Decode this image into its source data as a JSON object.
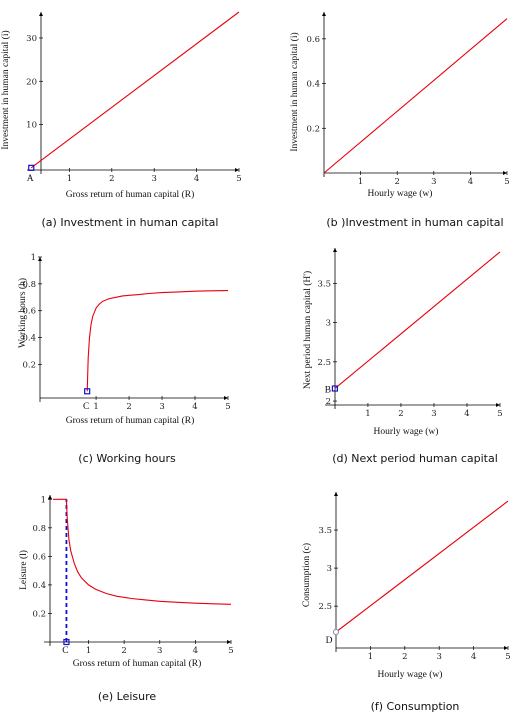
{
  "chart_data": [
    {
      "id": "a",
      "type": "line",
      "caption": "(a) Investment in human capital",
      "xlabel": "Gross return of human capital (R)",
      "ylabel": "Investment in human capital (i)",
      "xlim": [
        0,
        5
      ],
      "ylim": [
        -0.5,
        36
      ],
      "xticks": [
        1,
        2,
        3,
        4,
        5
      ],
      "xtick_labels": [
        "1",
        "2",
        "3",
        "4",
        "5"
      ],
      "yticks": [
        10,
        20,
        30
      ],
      "ytick_labels": [
        "10",
        "20",
        "30"
      ],
      "series": [
        {
          "color": "#e8000b",
          "x": [
            0.1,
            5
          ],
          "y": [
            0,
            36
          ]
        }
      ],
      "points": [
        {
          "label": "A",
          "x": 0.1,
          "y": 0,
          "style": "square"
        }
      ]
    },
    {
      "id": "b",
      "type": "line",
      "caption": "(b )Investment in human capital",
      "xlabel": "Hourly wage (w)",
      "ylabel": "Investment in human capital (i)",
      "xlim": [
        0,
        5
      ],
      "ylim": [
        0,
        0.72
      ],
      "xticks": [
        1,
        2,
        3,
        4,
        5
      ],
      "xtick_labels": [
        "1",
        "2",
        "3",
        "4",
        "5"
      ],
      "yticks": [
        0.2,
        0.4,
        0.6
      ],
      "ytick_labels": [
        "0.2",
        "0.4",
        "0.6"
      ],
      "series": [
        {
          "color": "#e8000b",
          "x": [
            0,
            5
          ],
          "y": [
            0,
            0.69
          ]
        }
      ],
      "points": []
    },
    {
      "id": "c",
      "type": "line",
      "caption": "(c) Working hours",
      "xlabel": "Gross return of human capital (R)",
      "ylabel": "Working hours (h)",
      "xlim": [
        -0.7,
        5
      ],
      "ylim": [
        -0.05,
        1
      ],
      "xticks": [
        1,
        2,
        3,
        4,
        5
      ],
      "xtick_labels": [
        "1",
        "2",
        "3",
        "4",
        "5"
      ],
      "yticks": [
        0.2,
        0.4,
        0.6,
        0.8,
        1
      ],
      "ytick_labels": [
        "0.2",
        "0.4",
        "0.6",
        "0.8",
        "1"
      ],
      "series": [
        {
          "color": "#e8000b",
          "x": [
            0.73,
            0.76,
            0.8,
            0.85,
            0.9,
            1.0,
            1.1,
            1.2,
            1.4,
            1.6,
            1.8,
            2.0,
            2.3,
            2.6,
            3.0,
            3.5,
            4.0,
            4.5,
            5.0
          ],
          "y": [
            0.0,
            0.25,
            0.4,
            0.5,
            0.56,
            0.62,
            0.65,
            0.67,
            0.69,
            0.7,
            0.71,
            0.715,
            0.72,
            0.728,
            0.735,
            0.74,
            0.745,
            0.748,
            0.75
          ]
        }
      ],
      "points": [
        {
          "label": "C",
          "x": 0.73,
          "y": 0,
          "style": "square"
        }
      ]
    },
    {
      "id": "d",
      "type": "line",
      "caption": "(d) Next period human capital",
      "xlabel": "Hourly wage (w)",
      "ylabel": "Next period human capital (H')",
      "xlim": [
        -0.3,
        5
      ],
      "ylim": [
        1.95,
        3.95
      ],
      "xticks": [
        1,
        2,
        3,
        4,
        5
      ],
      "xtick_labels": [
        "1",
        "2",
        "3",
        "4",
        "5"
      ],
      "yticks": [
        2,
        2.5,
        3,
        3.5
      ],
      "ytick_labels": [
        "2",
        "2.5",
        "3",
        "3.5"
      ],
      "series": [
        {
          "color": "#e8000b",
          "x": [
            0,
            5
          ],
          "y": [
            2.16,
            3.9
          ]
        }
      ],
      "points": [
        {
          "label": "B",
          "x": 0,
          "y": 2.16,
          "style": "square"
        }
      ]
    },
    {
      "id": "e",
      "type": "line",
      "caption": "(e) Leisure",
      "xlabel": "Gross return of human capital (R)",
      "ylabel": "Leisure (l)",
      "xlim": [
        -0.25,
        5
      ],
      "ylim": [
        0,
        1.03
      ],
      "xticks": [
        1,
        2,
        3,
        4,
        5
      ],
      "xtick_labels": [
        "1",
        "2",
        "3",
        "4",
        "5"
      ],
      "yticks": [
        0.2,
        0.4,
        0.6,
        0.8,
        1
      ],
      "ytick_labels": [
        "0.2",
        "0.4",
        "0.6",
        "0.8",
        "1"
      ],
      "series": [
        {
          "color": "#e8000b",
          "x": [
            0.0,
            0.38,
            0.4,
            0.45,
            0.5,
            0.6,
            0.7,
            0.8,
            1.0,
            1.2,
            1.5,
            1.8,
            2.2,
            2.6,
            3.0,
            3.5,
            4.0,
            4.5,
            5.0
          ],
          "y": [
            1.0,
            1.0,
            0.87,
            0.72,
            0.64,
            0.55,
            0.49,
            0.45,
            0.4,
            0.37,
            0.34,
            0.32,
            0.305,
            0.295,
            0.285,
            0.278,
            0.272,
            0.268,
            0.264
          ]
        }
      ],
      "guides": [
        {
          "x": 0.38,
          "y0": 0,
          "y1": 1
        }
      ],
      "points": [
        {
          "label": "C",
          "x": 0.38,
          "y": 0,
          "style": "square"
        }
      ]
    },
    {
      "id": "f",
      "type": "line",
      "caption": "(f) Consumption",
      "xlabel": "Hourly wage (w)",
      "ylabel": "Consumption (c)",
      "xlim": [
        0,
        5
      ],
      "ylim": [
        1.95,
        4.0
      ],
      "xticks": [
        1,
        2,
        3,
        4,
        5
      ],
      "xtick_labels": [
        "1",
        "2",
        "3",
        "4",
        "5"
      ],
      "yticks": [
        2.5,
        3,
        3.5
      ],
      "ytick_labels": [
        "2.5",
        "3",
        "3.5"
      ],
      "series": [
        {
          "color": "#e8000b",
          "x": [
            0,
            5
          ],
          "y": [
            2.16,
            3.88
          ]
        }
      ],
      "points": [
        {
          "label": "D",
          "x": 0,
          "y": 2.16,
          "style": "circle"
        }
      ]
    }
  ]
}
